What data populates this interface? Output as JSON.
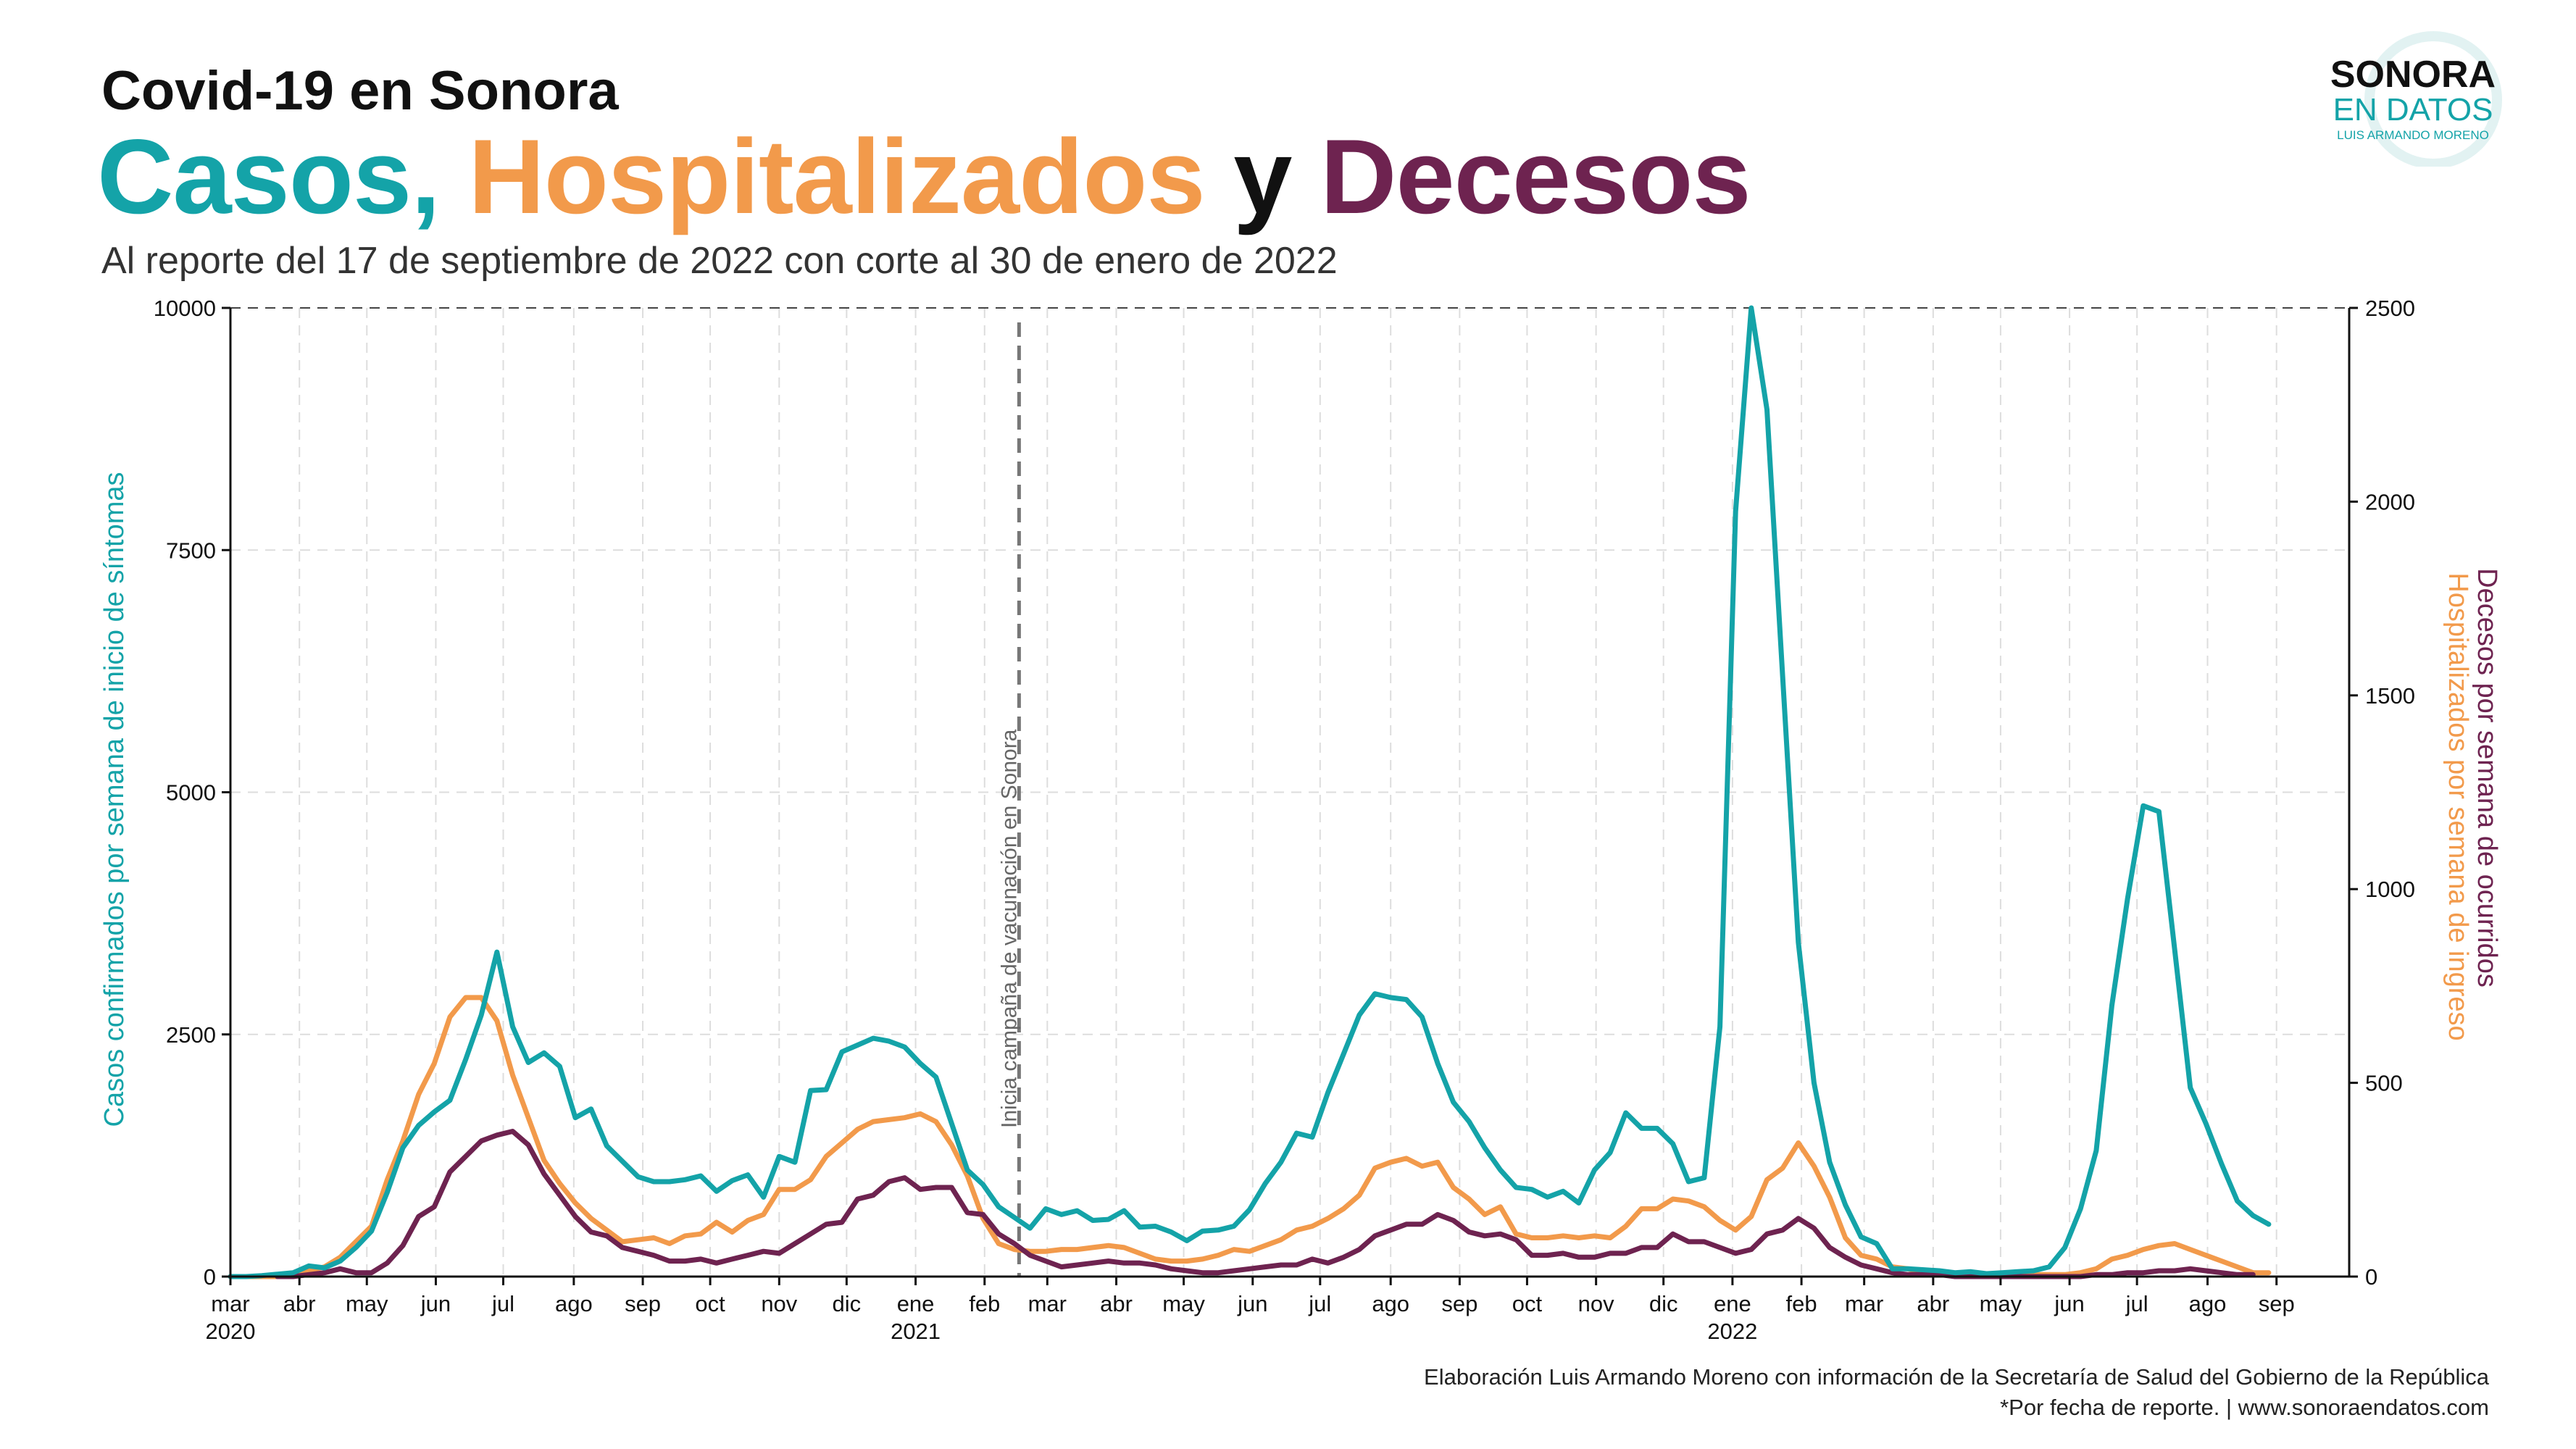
{
  "header": {
    "title_small": "Covid-19  en Sonora",
    "title_big": {
      "w1": "Casos,",
      "w2": "Hospitalizados",
      "w3": "y",
      "w4": "Decesos"
    },
    "subtitle": "Al reporte del 17 de septiembre de 2022 con corte al 30 de enero de 2022"
  },
  "logo": {
    "line1": "SONORA",
    "line2": "EN DATOS",
    "line3": "LUIS ARMANDO MORENO"
  },
  "footer": {
    "line1": "Elaboración Luis Armando Moreno con información de la Secretaría de Salud del Gobierno de la República",
    "line2": "*Por fecha de reporte. | www.sonoraendatos.com"
  },
  "colors": {
    "casos": "#14a3a8",
    "hospitalizados": "#f29a4b",
    "decesos": "#6e2350",
    "text": "#111111"
  },
  "chart_data": {
    "type": "line",
    "x_range": [
      0,
      130
    ],
    "x_ticks": [
      {
        "label": "mar",
        "year": "2020",
        "x": 0
      },
      {
        "label": "abr",
        "x": 4.4
      },
      {
        "label": "may",
        "x": 8.7
      },
      {
        "label": "jun",
        "x": 13.1
      },
      {
        "label": "jul",
        "x": 17.4
      },
      {
        "label": "ago",
        "x": 21.9
      },
      {
        "label": "sep",
        "x": 26.3
      },
      {
        "label": "oct",
        "x": 30.6
      },
      {
        "label": "nov",
        "x": 35.0
      },
      {
        "label": "dic",
        "x": 39.3
      },
      {
        "label": "ene",
        "year": "2021",
        "x": 43.7
      },
      {
        "label": "feb",
        "x": 48.1
      },
      {
        "label": "mar",
        "x": 52.1
      },
      {
        "label": "abr",
        "x": 56.5
      },
      {
        "label": "may",
        "x": 60.8
      },
      {
        "label": "jun",
        "x": 65.2
      },
      {
        "label": "jul",
        "x": 69.5
      },
      {
        "label": "ago",
        "x": 74.0
      },
      {
        "label": "sep",
        "x": 78.4
      },
      {
        "label": "oct",
        "x": 82.7
      },
      {
        "label": "nov",
        "x": 87.1
      },
      {
        "label": "dic",
        "x": 91.4
      },
      {
        "label": "ene",
        "year": "2022",
        "x": 95.8
      },
      {
        "label": "feb",
        "x": 100.2
      },
      {
        "label": "mar",
        "x": 104.2
      },
      {
        "label": "abr",
        "x": 108.6
      },
      {
        "label": "may",
        "x": 112.9
      },
      {
        "label": "jun",
        "x": 117.3
      },
      {
        "label": "jul",
        "x": 121.6
      },
      {
        "label": "ago",
        "x": 126.1
      },
      {
        "label": "sep",
        "x": 130.5
      }
    ],
    "y_left": {
      "label": "Casos confirmados por semana de inicio de síntomas",
      "range": [
        0,
        10000
      ],
      "ticks": [
        "0",
        "2500",
        "5000",
        "7500",
        "10000"
      ],
      "tick_values": [
        0,
        2500,
        5000,
        7500,
        10000
      ]
    },
    "y_right": {
      "label_decesos": "Decesos por semana de ocurridos",
      "label_hosp": "Hospitalizados por semana de ingreso",
      "range": [
        0,
        2500
      ],
      "ticks": [
        "0",
        "500",
        "1000",
        "1500",
        "2000",
        "2500"
      ],
      "tick_values": [
        0,
        500,
        1000,
        1500,
        2000,
        2500
      ]
    },
    "annotation": {
      "text": "Inicia campaña de vacunación en Sonora",
      "x": 50.3
    },
    "grid": true,
    "series": [
      {
        "key": "casos",
        "axis": "left",
        "x_start": 0,
        "values": [
          0,
          0,
          10,
          25,
          40,
          110,
          90,
          160,
          300,
          470,
          870,
          1330,
          1560,
          1700,
          1820,
          2240,
          2700,
          3350,
          2580,
          2210,
          2310,
          2170,
          1640,
          1730,
          1350,
          1190,
          1030,
          980,
          980,
          1000,
          1040,
          880,
          990,
          1050,
          820,
          1240,
          1180,
          1920,
          1930,
          2320,
          2390,
          2460,
          2430,
          2370,
          2200,
          2060,
          1580,
          1100,
          950,
          720,
          610,
          500,
          700,
          640,
          680,
          580,
          590,
          680,
          510,
          520,
          460,
          370,
          470,
          480,
          520,
          690,
          960,
          1180,
          1480,
          1440,
          1900,
          2300,
          2700,
          2920,
          2880,
          2860,
          2680,
          2200,
          1800,
          1600,
          1330,
          1100,
          920,
          900,
          820,
          880,
          760,
          1100,
          1280,
          1690,
          1530,
          1530,
          1370,
          980,
          1020,
          2580,
          7900,
          10000,
          8950,
          6200,
          3450,
          2000,
          1180,
          740,
          410,
          340,
          80,
          80,
          70,
          60,
          40,
          50,
          30,
          40,
          50,
          60,
          100,
          300,
          700,
          1300,
          2800,
          3900,
          4860,
          4800,
          3380,
          1950,
          1580,
          1160,
          780,
          630,
          540
        ]
      },
      {
        "key": "hospitalizados",
        "axis": "right",
        "x_start": 0,
        "values": [
          0,
          0,
          0,
          0,
          5,
          15,
          25,
          50,
          90,
          130,
          250,
          350,
          470,
          550,
          670,
          720,
          720,
          660,
          520,
          410,
          300,
          240,
          190,
          150,
          120,
          90,
          95,
          100,
          85,
          105,
          110,
          140,
          115,
          145,
          160,
          225,
          225,
          250,
          310,
          345,
          380,
          400,
          405,
          410,
          420,
          400,
          340,
          260,
          150,
          85,
          70,
          65,
          65,
          70,
          70,
          75,
          80,
          75,
          60,
          45,
          40,
          40,
          45,
          55,
          70,
          65,
          80,
          95,
          120,
          130,
          150,
          175,
          210,
          280,
          295,
          305,
          285,
          295,
          230,
          200,
          160,
          180,
          110,
          100,
          100,
          105,
          100,
          105,
          100,
          130,
          175,
          175,
          200,
          195,
          180,
          145,
          120,
          155,
          250,
          280,
          345,
          285,
          205,
          100,
          55,
          45,
          25,
          20,
          10,
          5,
          5,
          5,
          5,
          5,
          5,
          5,
          5,
          5,
          10,
          20,
          45,
          55,
          70,
          80,
          85,
          70,
          55,
          40,
          25,
          10,
          10
        ]
      },
      {
        "key": "decesos",
        "axis": "right",
        "x_start": 3,
        "values": [
          0,
          0,
          5,
          10,
          20,
          10,
          10,
          35,
          80,
          155,
          180,
          270,
          310,
          350,
          365,
          375,
          340,
          265,
          210,
          155,
          115,
          105,
          75,
          65,
          55,
          40,
          40,
          45,
          35,
          45,
          55,
          65,
          60,
          85,
          110,
          135,
          140,
          200,
          210,
          245,
          255,
          225,
          230,
          230,
          165,
          160,
          110,
          85,
          55,
          40,
          25,
          30,
          35,
          40,
          35,
          35,
          30,
          20,
          15,
          10,
          10,
          15,
          20,
          25,
          30,
          30,
          45,
          35,
          50,
          70,
          105,
          120,
          135,
          135,
          160,
          145,
          115,
          105,
          110,
          95,
          55,
          55,
          60,
          50,
          50,
          60,
          60,
          75,
          75,
          110,
          90,
          90,
          75,
          60,
          70,
          110,
          120,
          150,
          125,
          75,
          50,
          30,
          20,
          10,
          5,
          5,
          5,
          0,
          0,
          0,
          0,
          0,
          0,
          0,
          0,
          0,
          5,
          5,
          10,
          10,
          15,
          15,
          20,
          15,
          10,
          5,
          5
        ]
      }
    ]
  }
}
